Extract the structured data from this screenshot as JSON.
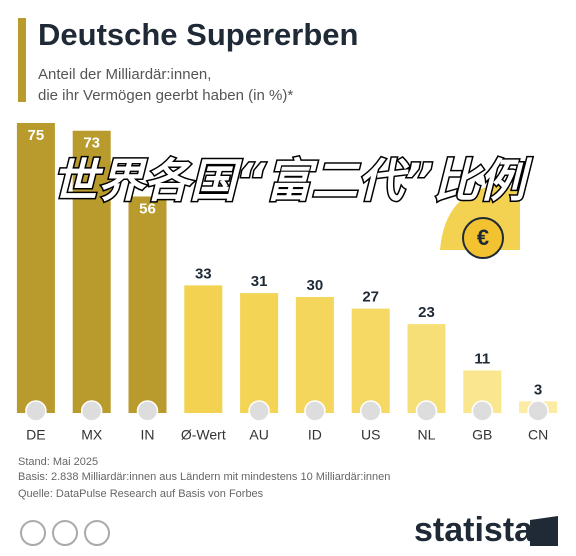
{
  "chart_data": {
    "type": "bar",
    "title": "Deutsche Supererben",
    "subtitle": [
      "Anteil der Milliardär:innen,",
      "die ihr Vermögen geerbt haben (in %)*"
    ],
    "annotation": "世界各国“富二代”比例",
    "categories": [
      "DE",
      "MX",
      "IN",
      "Ø-Wert",
      "AU",
      "ID",
      "US",
      "NL",
      "GB",
      "CN"
    ],
    "values": [
      75,
      73,
      56,
      33,
      31,
      30,
      27,
      23,
      11,
      3
    ],
    "colors": [
      "#b89b2c",
      "#b89b2c",
      "#b89b2c",
      "#f2d250",
      "#f3d455",
      "#f4d65c",
      "#f5d964",
      "#f7df78",
      "#f9e68f",
      "#fbeba5"
    ],
    "notes": [
      "Stand: Mai 2025",
      "Basis: 2.838 Milliardär:innen aus Ländern mit mindestens 10 Milliardär:innen",
      "Quelle: DataPulse Research auf Basis von Forbes"
    ],
    "logo": "statista"
  }
}
